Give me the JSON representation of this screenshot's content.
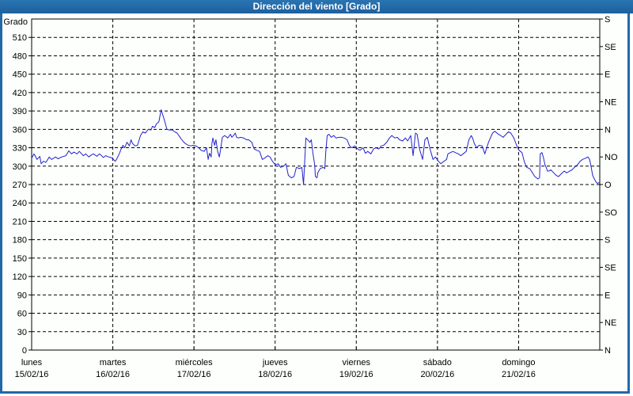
{
  "window": {
    "title": "Dirección del viento [Grado]"
  },
  "colors": {
    "titlebar": "#2169a6",
    "border": "#2169a6",
    "line": "#2222cd",
    "grid": "#000000",
    "background": "#fdfffd",
    "text": "#000000"
  },
  "chart_data": {
    "type": "line",
    "title": "Dirección del viento [Grado]",
    "ylabel_left": "Grado",
    "ylim": [
      0,
      540
    ],
    "y_tick_step": 30,
    "y_left_tick_labels": [
      "0",
      "30",
      "60",
      "90",
      "120",
      "150",
      "180",
      "210",
      "240",
      "270",
      "300",
      "330",
      "360",
      "390",
      "420",
      "450",
      "480",
      "510"
    ],
    "y_right_step": 45,
    "y_right_labels_bottom_up": [
      "N",
      "NE",
      "E",
      "SE",
      "S",
      "SO",
      "O",
      "NO",
      "N",
      "NE",
      "E",
      "SE",
      "S"
    ],
    "xlim_hours": [
      0,
      168
    ],
    "grid": "dashed",
    "x_days": [
      {
        "name": "lunes",
        "date": "15/02/16"
      },
      {
        "name": "martes",
        "date": "16/02/16"
      },
      {
        "name": "miércoles",
        "date": "17/02/16"
      },
      {
        "name": "jueves",
        "date": "18/02/16"
      },
      {
        "name": "viernes",
        "date": "19/02/16"
      },
      {
        "name": "sábado",
        "date": "20/02/16"
      },
      {
        "name": "domingo",
        "date": "21/02/16"
      }
    ],
    "series": [
      {
        "name": "Dirección del viento",
        "color": "#2222cd",
        "points": [
          [
            0,
            313
          ],
          [
            0.7,
            320
          ],
          [
            1.6,
            311
          ],
          [
            2.4,
            316
          ],
          [
            2.8,
            304
          ],
          [
            3.5,
            308
          ],
          [
            4.2,
            306
          ],
          [
            5.2,
            315
          ],
          [
            5.9,
            311
          ],
          [
            7.1,
            315
          ],
          [
            7.8,
            312
          ],
          [
            8.9,
            315
          ],
          [
            10.1,
            317
          ],
          [
            11,
            325
          ],
          [
            11.8,
            320
          ],
          [
            12.5,
            323
          ],
          [
            13.4,
            320
          ],
          [
            14.1,
            324
          ],
          [
            15.3,
            317
          ],
          [
            16,
            320
          ],
          [
            16.9,
            315
          ],
          [
            17.6,
            318
          ],
          [
            18.3,
            320
          ],
          [
            19.3,
            316
          ],
          [
            20,
            320
          ],
          [
            20.7,
            317
          ],
          [
            21.2,
            314
          ],
          [
            21.9,
            317
          ],
          [
            22.8,
            315
          ],
          [
            23.5,
            314
          ],
          [
            24.2,
            311
          ],
          [
            24.7,
            308
          ],
          [
            25.1,
            311
          ],
          [
            25.9,
            320
          ],
          [
            26.6,
            330
          ],
          [
            27,
            334
          ],
          [
            27.5,
            330
          ],
          [
            28.2,
            339
          ],
          [
            28.9,
            333
          ],
          [
            29.4,
            343
          ],
          [
            29.8,
            337
          ],
          [
            30.6,
            333
          ],
          [
            31.3,
            334
          ],
          [
            32.2,
            350
          ],
          [
            32.9,
            356
          ],
          [
            33.6,
            354
          ],
          [
            34.5,
            360
          ],
          [
            35.3,
            359
          ],
          [
            35.7,
            365
          ],
          [
            36.4,
            363
          ],
          [
            36.9,
            369
          ],
          [
            37.6,
            372
          ],
          [
            38.3,
            392
          ],
          [
            39.2,
            376
          ],
          [
            40,
            360
          ],
          [
            40.7,
            359
          ],
          [
            41.6,
            359
          ],
          [
            42.3,
            356
          ],
          [
            43,
            354
          ],
          [
            43.9,
            347
          ],
          [
            44.7,
            341
          ],
          [
            45.4,
            337
          ],
          [
            46.3,
            334
          ],
          [
            47,
            333
          ],
          [
            47.7,
            334
          ],
          [
            48.6,
            333
          ],
          [
            49.4,
            330
          ],
          [
            50.1,
            326
          ],
          [
            51,
            324
          ],
          [
            51.7,
            330
          ],
          [
            52.2,
            311
          ],
          [
            52.6,
            321
          ],
          [
            53.1,
            315
          ],
          [
            53.3,
            337
          ],
          [
            53.6,
            346
          ],
          [
            54.1,
            334
          ],
          [
            54.5,
            343
          ],
          [
            55,
            324
          ],
          [
            55.5,
            315
          ],
          [
            55.9,
            328
          ],
          [
            56.4,
            347
          ],
          [
            57.1,
            350
          ],
          [
            58,
            346
          ],
          [
            58.8,
            352
          ],
          [
            59.2,
            347
          ],
          [
            59.7,
            350
          ],
          [
            60.2,
            354
          ],
          [
            60.6,
            347
          ],
          [
            61.1,
            346
          ],
          [
            61.8,
            347
          ],
          [
            62.7,
            346
          ],
          [
            63.5,
            343
          ],
          [
            64.2,
            343
          ],
          [
            65.1,
            339
          ],
          [
            65.8,
            328
          ],
          [
            66.5,
            326
          ],
          [
            67.4,
            324
          ],
          [
            68.2,
            311
          ],
          [
            68.9,
            313
          ],
          [
            69.8,
            317
          ],
          [
            70.5,
            315
          ],
          [
            71.2,
            308
          ],
          [
            72.1,
            302
          ],
          [
            72.9,
            304
          ],
          [
            73.6,
            298
          ],
          [
            74.5,
            300
          ],
          [
            75.2,
            304
          ],
          [
            75.9,
            285
          ],
          [
            76.8,
            281
          ],
          [
            77.6,
            283
          ],
          [
            78.3,
            298
          ],
          [
            79.2,
            296
          ],
          [
            79.9,
            298
          ],
          [
            80.4,
            270
          ],
          [
            81.1,
            346
          ],
          [
            82.3,
            339
          ],
          [
            82.7,
            343
          ],
          [
            83.2,
            320
          ],
          [
            83.7,
            302
          ],
          [
            83.9,
            283
          ],
          [
            84.4,
            281
          ],
          [
            84.6,
            289
          ],
          [
            85.3,
            296
          ],
          [
            86.2,
            298
          ],
          [
            86.7,
            296
          ],
          [
            87,
            324
          ],
          [
            87.4,
            350
          ],
          [
            87.9,
            352
          ],
          [
            88.6,
            347
          ],
          [
            89.3,
            350
          ],
          [
            90,
            346
          ],
          [
            90.9,
            347
          ],
          [
            91.7,
            347
          ],
          [
            92.4,
            346
          ],
          [
            93.3,
            343
          ],
          [
            94,
            333
          ],
          [
            94.7,
            330
          ],
          [
            95.6,
            333
          ],
          [
            96.4,
            328
          ],
          [
            97.1,
            326
          ],
          [
            98,
            330
          ],
          [
            98.7,
            321
          ],
          [
            99.4,
            324
          ],
          [
            100.3,
            320
          ],
          [
            101.1,
            328
          ],
          [
            101.8,
            330
          ],
          [
            102.7,
            328
          ],
          [
            103.4,
            333
          ],
          [
            104.1,
            334
          ],
          [
            105,
            339
          ],
          [
            105.8,
            346
          ],
          [
            106.5,
            350
          ],
          [
            107.4,
            346
          ],
          [
            108.1,
            347
          ],
          [
            108.8,
            343
          ],
          [
            109.7,
            341
          ],
          [
            110.5,
            346
          ],
          [
            111.2,
            341
          ],
          [
            112.1,
            350
          ],
          [
            112.8,
            317
          ],
          [
            113.5,
            354
          ],
          [
            114,
            352
          ],
          [
            114.7,
            328
          ],
          [
            115.6,
            311
          ],
          [
            116.3,
            343
          ],
          [
            117,
            347
          ],
          [
            118,
            324
          ],
          [
            118.7,
            311
          ],
          [
            119.4,
            315
          ],
          [
            120.3,
            308
          ],
          [
            121,
            304
          ],
          [
            121.7,
            307
          ],
          [
            122.7,
            311
          ],
          [
            123.1,
            320
          ],
          [
            123.8,
            322
          ],
          [
            124.6,
            324
          ],
          [
            125.3,
            322
          ],
          [
            126.2,
            320
          ],
          [
            126.9,
            317
          ],
          [
            127.6,
            320
          ],
          [
            128.5,
            324
          ],
          [
            129.3,
            343
          ],
          [
            130,
            350
          ],
          [
            130.4,
            346
          ],
          [
            130.9,
            337
          ],
          [
            131.6,
            330
          ],
          [
            132.3,
            334
          ],
          [
            133.2,
            333
          ],
          [
            134,
            320
          ],
          [
            135.1,
            339
          ],
          [
            136.3,
            354
          ],
          [
            137,
            357
          ],
          [
            138,
            352
          ],
          [
            138.7,
            350
          ],
          [
            139.4,
            347
          ],
          [
            140.3,
            352
          ],
          [
            141,
            356
          ],
          [
            141.7,
            354
          ],
          [
            142.6,
            346
          ],
          [
            143.4,
            334
          ],
          [
            144.1,
            326
          ],
          [
            145,
            322
          ],
          [
            145.7,
            307
          ],
          [
            146.4,
            298
          ],
          [
            147.3,
            296
          ],
          [
            148.1,
            289
          ],
          [
            148.8,
            283
          ],
          [
            149.7,
            279
          ],
          [
            150.2,
            281
          ],
          [
            150.4,
            320
          ],
          [
            150.9,
            322
          ],
          [
            151.3,
            315
          ],
          [
            151.8,
            302
          ],
          [
            152.3,
            296
          ],
          [
            152.5,
            292
          ],
          [
            153,
            292
          ],
          [
            153.5,
            294
          ],
          [
            154.4,
            289
          ],
          [
            155.1,
            285
          ],
          [
            155.8,
            283
          ],
          [
            156.7,
            288
          ],
          [
            157.5,
            292
          ],
          [
            158.2,
            289
          ],
          [
            159.1,
            292
          ],
          [
            159.8,
            294
          ],
          [
            160.5,
            298
          ],
          [
            161.4,
            302
          ],
          [
            162.2,
            308
          ],
          [
            162.9,
            311
          ],
          [
            163.8,
            313
          ],
          [
            164.5,
            315
          ],
          [
            165,
            311
          ],
          [
            165.4,
            300
          ],
          [
            165.9,
            285
          ],
          [
            166.4,
            279
          ],
          [
            166.9,
            274
          ],
          [
            167.3,
            272
          ],
          [
            167.8,
            273
          ]
        ]
      }
    ]
  }
}
